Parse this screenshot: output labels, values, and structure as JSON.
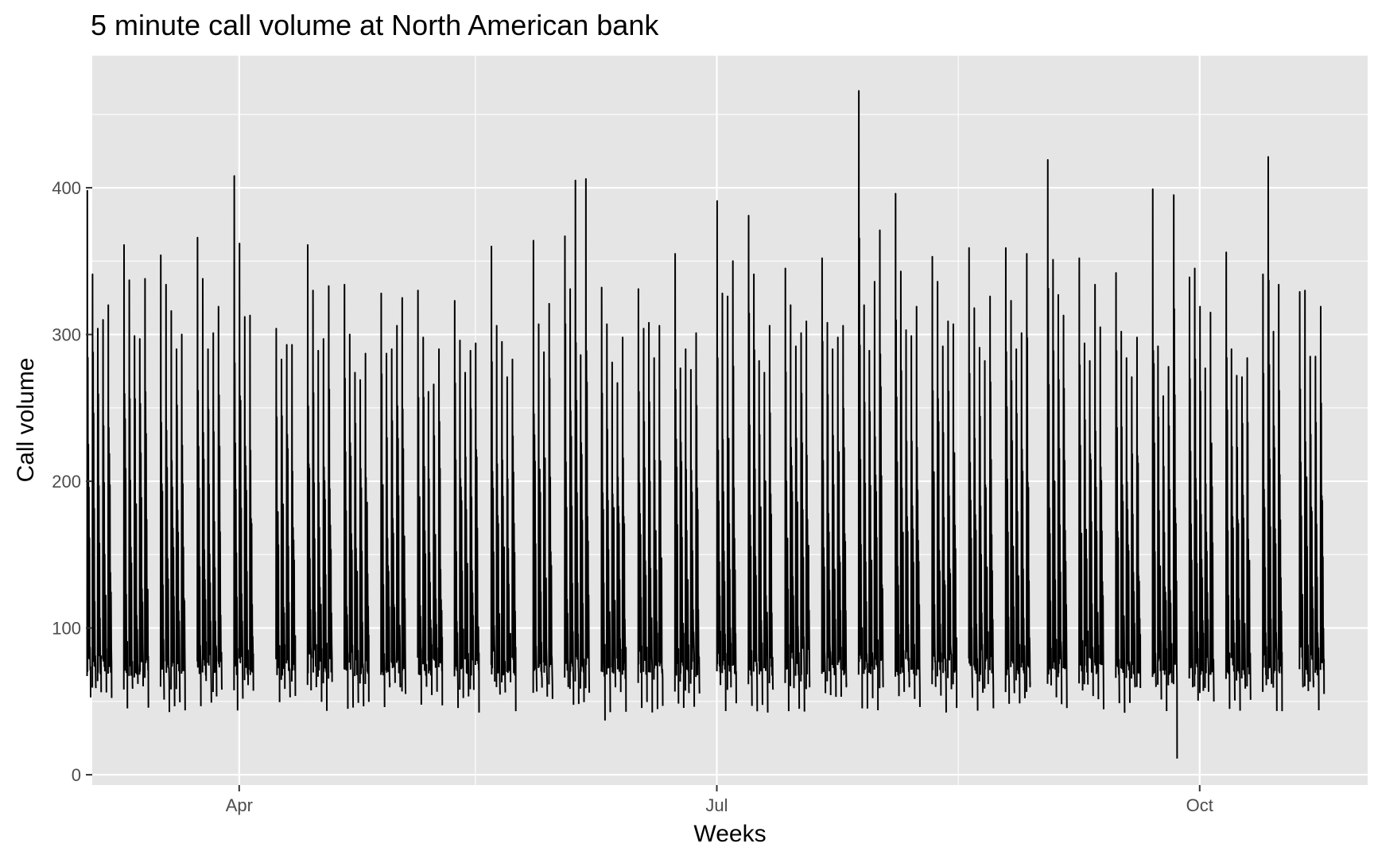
{
  "chart_data": {
    "type": "line",
    "title": "5 minute call volume at North American bank",
    "xlabel": "Weeks",
    "ylabel": "Call volume",
    "x_scale": "date",
    "xlim": [
      "2003-03-04",
      "2003-11-02"
    ],
    "ylim": [
      -7,
      490
    ],
    "grid": true,
    "legend": "none",
    "colors": {
      "panel": "#e5e5e5",
      "grid": "#ffffff",
      "line": "#000000",
      "tick_text": "#4d4d4d"
    },
    "y_ticks": [
      {
        "value": 0,
        "label": "0"
      },
      {
        "value": 100,
        "label": "100"
      },
      {
        "value": 200,
        "label": "200"
      },
      {
        "value": 300,
        "label": "300"
      },
      {
        "value": 400,
        "label": "400"
      }
    ],
    "x_ticks": [
      {
        "date": "2003-04-01",
        "label": "Apr"
      },
      {
        "date": "2003-07-01",
        "label": "Jul"
      },
      {
        "date": "2003-10-01",
        "label": "Oct"
      }
    ],
    "x_minor_grid": [
      "2003-05-16",
      "2003-08-16"
    ],
    "daily_peaks": [
      [
        "2003-03-03",
        398
      ],
      [
        "2003-03-04",
        341
      ],
      [
        "2003-03-05",
        304
      ],
      [
        "2003-03-06",
        310
      ],
      [
        "2003-03-07",
        320
      ],
      [
        "2003-03-10",
        361
      ],
      [
        "2003-03-11",
        337
      ],
      [
        "2003-03-12",
        299
      ],
      [
        "2003-03-13",
        297
      ],
      [
        "2003-03-14",
        338
      ],
      [
        "2003-03-17",
        354
      ],
      [
        "2003-03-18",
        334
      ],
      [
        "2003-03-19",
        316
      ],
      [
        "2003-03-20",
        290
      ],
      [
        "2003-03-21",
        300
      ],
      [
        "2003-03-24",
        366
      ],
      [
        "2003-03-25",
        338
      ],
      [
        "2003-03-26",
        290
      ],
      [
        "2003-03-27",
        301
      ],
      [
        "2003-03-28",
        319
      ],
      [
        "2003-03-31",
        408
      ],
      [
        "2003-04-01",
        362
      ],
      [
        "2003-04-02",
        312
      ],
      [
        "2003-04-03",
        313
      ],
      [
        "2003-04-08",
        304
      ],
      [
        "2003-04-09",
        283
      ],
      [
        "2003-04-10",
        293
      ],
      [
        "2003-04-11",
        293
      ],
      [
        "2003-04-14",
        361
      ],
      [
        "2003-04-15",
        330
      ],
      [
        "2003-04-16",
        289
      ],
      [
        "2003-04-17",
        297
      ],
      [
        "2003-04-18",
        333
      ],
      [
        "2003-04-21",
        334
      ],
      [
        "2003-04-22",
        300
      ],
      [
        "2003-04-23",
        274
      ],
      [
        "2003-04-24",
        269
      ],
      [
        "2003-04-25",
        287
      ],
      [
        "2003-04-28",
        328
      ],
      [
        "2003-04-29",
        287
      ],
      [
        "2003-04-30",
        290
      ],
      [
        "2003-05-01",
        306
      ],
      [
        "2003-05-02",
        325
      ],
      [
        "2003-05-05",
        330
      ],
      [
        "2003-05-06",
        298
      ],
      [
        "2003-05-07",
        261
      ],
      [
        "2003-05-08",
        266
      ],
      [
        "2003-05-09",
        290
      ],
      [
        "2003-05-12",
        323
      ],
      [
        "2003-05-13",
        296
      ],
      [
        "2003-05-14",
        274
      ],
      [
        "2003-05-15",
        289
      ],
      [
        "2003-05-16",
        294
      ],
      [
        "2003-05-19",
        360
      ],
      [
        "2003-05-20",
        306
      ],
      [
        "2003-05-21",
        295
      ],
      [
        "2003-05-22",
        271
      ],
      [
        "2003-05-23",
        283
      ],
      [
        "2003-05-27",
        364
      ],
      [
        "2003-05-28",
        307
      ],
      [
        "2003-05-29",
        288
      ],
      [
        "2003-05-30",
        321
      ],
      [
        "2003-06-02",
        367
      ],
      [
        "2003-06-03",
        331
      ],
      [
        "2003-06-04",
        405
      ],
      [
        "2003-06-05",
        286
      ],
      [
        "2003-06-06",
        406
      ],
      [
        "2003-06-09",
        332
      ],
      [
        "2003-06-10",
        307
      ],
      [
        "2003-06-11",
        281
      ],
      [
        "2003-06-12",
        267
      ],
      [
        "2003-06-13",
        298
      ],
      [
        "2003-06-16",
        331
      ],
      [
        "2003-06-17",
        304
      ],
      [
        "2003-06-18",
        308
      ],
      [
        "2003-06-19",
        284
      ],
      [
        "2003-06-20",
        306
      ],
      [
        "2003-06-23",
        355
      ],
      [
        "2003-06-24",
        277
      ],
      [
        "2003-06-25",
        290
      ],
      [
        "2003-06-26",
        276
      ],
      [
        "2003-06-27",
        301
      ],
      [
        "2003-07-01",
        391
      ],
      [
        "2003-07-02",
        328
      ],
      [
        "2003-07-03",
        326
      ],
      [
        "2003-07-04",
        350
      ],
      [
        "2003-07-07",
        381
      ],
      [
        "2003-07-08",
        341
      ],
      [
        "2003-07-09",
        282
      ],
      [
        "2003-07-10",
        274
      ],
      [
        "2003-07-11",
        306
      ],
      [
        "2003-07-14",
        345
      ],
      [
        "2003-07-15",
        320
      ],
      [
        "2003-07-16",
        292
      ],
      [
        "2003-07-17",
        301
      ],
      [
        "2003-07-18",
        309
      ],
      [
        "2003-07-21",
        352
      ],
      [
        "2003-07-22",
        308
      ],
      [
        "2003-07-23",
        290
      ],
      [
        "2003-07-24",
        298
      ],
      [
        "2003-07-25",
        306
      ],
      [
        "2003-07-28",
        466
      ],
      [
        "2003-07-29",
        320
      ],
      [
        "2003-07-30",
        289
      ],
      [
        "2003-07-31",
        336
      ],
      [
        "2003-08-01",
        371
      ],
      [
        "2003-08-04",
        396
      ],
      [
        "2003-08-05",
        343
      ],
      [
        "2003-08-06",
        303
      ],
      [
        "2003-08-07",
        299
      ],
      [
        "2003-08-08",
        319
      ],
      [
        "2003-08-11",
        353
      ],
      [
        "2003-08-12",
        336
      ],
      [
        "2003-08-13",
        292
      ],
      [
        "2003-08-14",
        309
      ],
      [
        "2003-08-15",
        307
      ],
      [
        "2003-08-18",
        359
      ],
      [
        "2003-08-19",
        318
      ],
      [
        "2003-08-20",
        291
      ],
      [
        "2003-08-21",
        282
      ],
      [
        "2003-08-22",
        326
      ],
      [
        "2003-08-25",
        359
      ],
      [
        "2003-08-26",
        323
      ],
      [
        "2003-08-27",
        290
      ],
      [
        "2003-08-28",
        301
      ],
      [
        "2003-08-29",
        355
      ],
      [
        "2003-09-02",
        419
      ],
      [
        "2003-09-03",
        351
      ],
      [
        "2003-09-04",
        327
      ],
      [
        "2003-09-05",
        313
      ],
      [
        "2003-09-08",
        352
      ],
      [
        "2003-09-09",
        294
      ],
      [
        "2003-09-10",
        282
      ],
      [
        "2003-09-11",
        334
      ],
      [
        "2003-09-12",
        305
      ],
      [
        "2003-09-15",
        342
      ],
      [
        "2003-09-16",
        302
      ],
      [
        "2003-09-17",
        284
      ],
      [
        "2003-09-18",
        271
      ],
      [
        "2003-09-19",
        298
      ],
      [
        "2003-09-22",
        399
      ],
      [
        "2003-09-23",
        292
      ],
      [
        "2003-09-24",
        258
      ],
      [
        "2003-09-25",
        278
      ],
      [
        "2003-09-26",
        395
      ],
      [
        "2003-09-29",
        339
      ],
      [
        "2003-09-30",
        345
      ],
      [
        "2003-10-01",
        319
      ],
      [
        "2003-10-02",
        277
      ],
      [
        "2003-10-03",
        315
      ],
      [
        "2003-10-06",
        356
      ],
      [
        "2003-10-07",
        290
      ],
      [
        "2003-10-08",
        272
      ],
      [
        "2003-10-09",
        271
      ],
      [
        "2003-10-10",
        284
      ],
      [
        "2003-10-13",
        341
      ],
      [
        "2003-10-14",
        421
      ],
      [
        "2003-10-15",
        302
      ],
      [
        "2003-10-16",
        334
      ],
      [
        "2003-10-20",
        329
      ],
      [
        "2003-10-21",
        330
      ],
      [
        "2003-10-22",
        285
      ],
      [
        "2003-10-23",
        285
      ],
      [
        "2003-10-24",
        319
      ]
    ],
    "notable_lows": [
      [
        "2003-06-09",
        37
      ],
      [
        "2003-09-26",
        11
      ]
    ]
  }
}
